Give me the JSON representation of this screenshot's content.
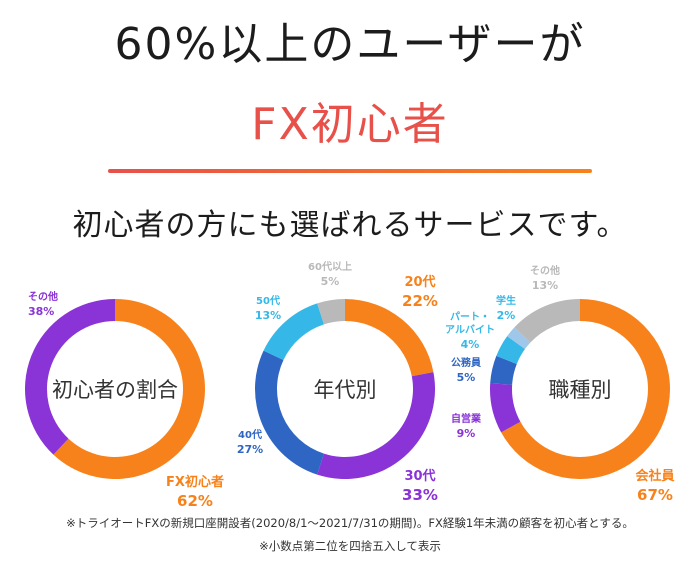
{
  "header": {
    "headline": "60%以上のユーザーが",
    "highlight": "FX初心者",
    "subheadline": "初心者の方にも選ばれるサービスです。"
  },
  "colors": {
    "accent": "#e8504a",
    "orange": "#f7821b",
    "yellow": "#f5b93a",
    "purple": "#8a33d6",
    "dark_blue": "#2f66c4",
    "light_blue": "#35b8e8",
    "gray": "#b9b9b9"
  },
  "chart_data": [
    {
      "type": "pie",
      "title": "初心者の割合",
      "slices": [
        {
          "label": "FX初心者",
          "value": 62,
          "value_text": "62%",
          "color": "#f7821b"
        },
        {
          "label": "その他",
          "value": 38,
          "value_text": "38%",
          "color": "#8a33d6"
        }
      ]
    },
    {
      "type": "pie",
      "title": "年代別",
      "slices": [
        {
          "label": "20代",
          "value": 22,
          "value_text": "22%",
          "color": "#f7821b"
        },
        {
          "label": "30代",
          "value": 33,
          "value_text": "33%",
          "color": "#8a33d6"
        },
        {
          "label": "40代",
          "value": 27,
          "value_text": "27%",
          "color": "#2f66c4"
        },
        {
          "label": "50代",
          "value": 13,
          "value_text": "13%",
          "color": "#35b8e8"
        },
        {
          "label": "60代以上",
          "value": 5,
          "value_text": "5%",
          "color": "#b9b9b9"
        }
      ]
    },
    {
      "type": "pie",
      "title": "職種別",
      "slices": [
        {
          "label": "会社員",
          "value": 67,
          "value_text": "67%",
          "color": "#f7821b"
        },
        {
          "label": "自営業",
          "value": 9,
          "value_text": "9%",
          "color": "#8a33d6"
        },
        {
          "label": "公務員",
          "value": 5,
          "value_text": "5%",
          "color": "#2f66c4"
        },
        {
          "label": "パート・アルバイト",
          "value": 4,
          "value_text": "4%",
          "color": "#35b8e8"
        },
        {
          "label": "学生",
          "value": 2,
          "value_text": "2%",
          "color": "#9fc7ea"
        },
        {
          "label": "その他",
          "value": 13,
          "value_text": "13%",
          "color": "#b9b9b9"
        }
      ]
    }
  ],
  "footnotes": {
    "note1": "※トライオートFXの新規口座開設者(2020/8/1〜2021/7/31の期間)。FX経験1年未満の顧客を初心者とする。",
    "note2": "※小数点第二位を四捨五入して表示"
  }
}
